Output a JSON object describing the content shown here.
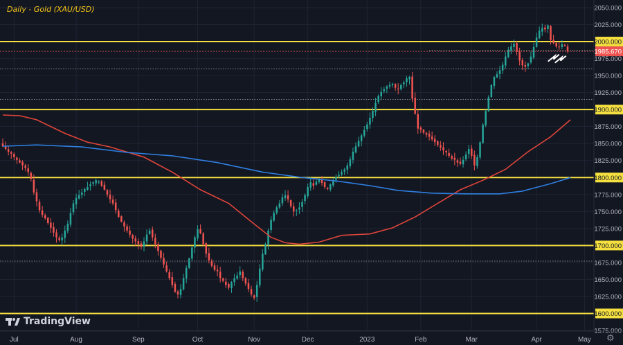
{
  "chart_data": {
    "type": "candlestick",
    "title": "Daily - Gold (XAU/USD)",
    "brand": "TradingView",
    "ylim": [
      1575,
      2050
    ],
    "y_ticks": [
      "2050.000",
      "2025.000",
      "2000.000",
      "1975.000",
      "1950.000",
      "1925.000",
      "1900.000",
      "1875.000",
      "1850.000",
      "1825.000",
      "1800.000",
      "1775.000",
      "1750.000",
      "1725.000",
      "1700.000",
      "1675.000",
      "1650.000",
      "1625.000",
      "1600.000",
      "1575.000"
    ],
    "x_labels": [
      {
        "label": "Jul",
        "i": 4
      },
      {
        "label": "Aug",
        "i": 26
      },
      {
        "label": "Sep",
        "i": 48
      },
      {
        "label": "Oct",
        "i": 69
      },
      {
        "label": "Nov",
        "i": 89
      },
      {
        "label": "Dec",
        "i": 108
      },
      {
        "label": "2023",
        "i": 129
      },
      {
        "label": "Feb",
        "i": 148
      },
      {
        "label": "Mar",
        "i": 166
      },
      {
        "label": "Apr",
        "i": 189
      },
      {
        "label": "May",
        "i": 206
      }
    ],
    "last_price": "1985.670",
    "n_bars": 201,
    "close": [
      1846,
      1842,
      1838,
      1835,
      1830,
      1826,
      1822,
      1818,
      1814,
      1808,
      1798,
      1778,
      1765,
      1752,
      1745,
      1740,
      1733,
      1726,
      1719,
      1712,
      1708,
      1712,
      1722,
      1732,
      1748,
      1762,
      1770,
      1774,
      1778,
      1783,
      1786,
      1790,
      1793,
      1796,
      1794,
      1788,
      1782,
      1775,
      1768,
      1762,
      1752,
      1742,
      1735,
      1728,
      1722,
      1716,
      1710,
      1706,
      1702,
      1698,
      1706,
      1716,
      1722,
      1712,
      1702,
      1692,
      1682,
      1672,
      1662,
      1652,
      1642,
      1632,
      1628,
      1636,
      1652,
      1667,
      1681,
      1697,
      1712,
      1724,
      1718,
      1702,
      1688,
      1678,
      1670,
      1664,
      1662,
      1652,
      1648,
      1642,
      1638,
      1646,
      1652,
      1656,
      1662,
      1652,
      1644,
      1636,
      1628,
      1623,
      1642,
      1666,
      1688,
      1702,
      1722,
      1738,
      1748,
      1756,
      1762,
      1771,
      1774,
      1768,
      1758,
      1750,
      1752,
      1756,
      1764,
      1774,
      1786,
      1793,
      1788,
      1794,
      1798,
      1792,
      1786,
      1783,
      1790,
      1796,
      1801,
      1804,
      1808,
      1812,
      1818,
      1827,
      1838,
      1846,
      1854,
      1862,
      1870,
      1878,
      1888,
      1898,
      1910,
      1920,
      1926,
      1930,
      1934,
      1936,
      1938,
      1932,
      1930,
      1936,
      1940,
      1946,
      1948,
      1916,
      1894,
      1872,
      1870,
      1866,
      1863,
      1860,
      1856,
      1852,
      1848,
      1844,
      1840,
      1837,
      1832,
      1828,
      1826,
      1822,
      1820,
      1826,
      1834,
      1842,
      1832,
      1818,
      1830,
      1852,
      1878,
      1898,
      1918,
      1936,
      1948,
      1952,
      1958,
      1966,
      1978,
      1988,
      1993,
      1997,
      1985,
      1972,
      1965,
      1963,
      1968,
      1978,
      1992,
      2006,
      2016,
      2020,
      2018,
      2024,
      2002,
      1998,
      1993,
      1992,
      1996,
      1994,
      1985.67
    ],
    "ma_red": {
      "name": "",
      "points": [
        [
          0,
          1892
        ],
        [
          6,
          1891
        ],
        [
          12,
          1885
        ],
        [
          22,
          1865
        ],
        [
          30,
          1852
        ],
        [
          38,
          1845
        ],
        [
          50,
          1830
        ],
        [
          60,
          1808
        ],
        [
          70,
          1782
        ],
        [
          80,
          1762
        ],
        [
          88,
          1735
        ],
        [
          95,
          1712
        ],
        [
          100,
          1704
        ],
        [
          105,
          1702
        ],
        [
          112,
          1705
        ],
        [
          120,
          1715
        ],
        [
          130,
          1717
        ],
        [
          138,
          1726
        ],
        [
          146,
          1742
        ],
        [
          154,
          1762
        ],
        [
          162,
          1782
        ],
        [
          170,
          1796
        ],
        [
          178,
          1812
        ],
        [
          186,
          1838
        ],
        [
          194,
          1860
        ],
        [
          201,
          1885
        ]
      ]
    },
    "ma_blue": {
      "name": "",
      "points": [
        [
          0,
          1846
        ],
        [
          12,
          1848
        ],
        [
          28,
          1845
        ],
        [
          44,
          1837
        ],
        [
          60,
          1832
        ],
        [
          76,
          1822
        ],
        [
          92,
          1808
        ],
        [
          106,
          1800
        ],
        [
          118,
          1795
        ],
        [
          130,
          1788
        ],
        [
          140,
          1781
        ],
        [
          152,
          1777
        ],
        [
          164,
          1776
        ],
        [
          176,
          1776
        ],
        [
          184,
          1780
        ],
        [
          194,
          1791
        ],
        [
          201,
          1800
        ]
      ]
    },
    "horizontal_levels": [
      2000,
      1900,
      1800,
      1700,
      1600
    ],
    "dotted_levels": [
      1987,
      1960,
      1915,
      1677
    ],
    "annotation": "arrows pointing to 1975.000 support"
  }
}
